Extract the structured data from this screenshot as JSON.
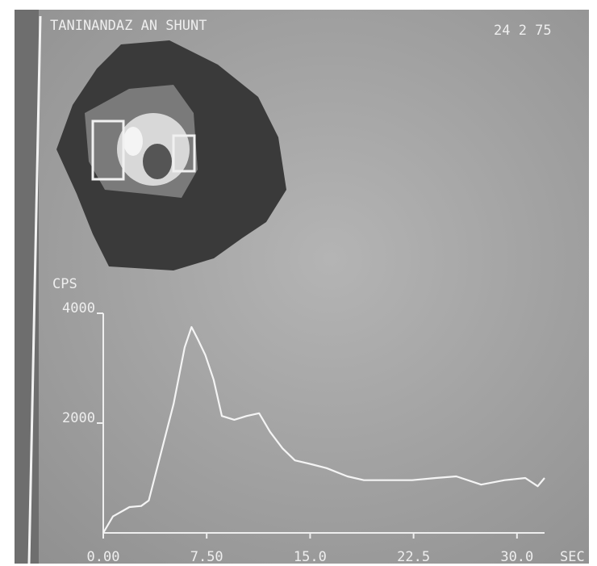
{
  "chart_data": {
    "type": "line",
    "title": "TANINANDAZ AN SHUNT",
    "annotation": "24 2 75",
    "y_label": "CPS",
    "x_label": "SEC",
    "x": [
      0,
      0.7,
      1.9,
      2.75,
      3.3,
      4.2,
      5.1,
      5.9,
      6.4,
      6.85,
      7.4,
      8.0,
      8.6,
      9.5,
      10.4,
      11.3,
      12.1,
      13.0,
      13.9,
      15.1,
      16.2,
      17.7,
      18.9,
      20.6,
      22.4,
      24.1,
      25.6,
      27.4,
      29.1,
      30.6,
      31.5,
      32
    ],
    "values": [
      0,
      300,
      470,
      490,
      590,
      1470,
      2350,
      3380,
      3750,
      3530,
      3240,
      2790,
      2130,
      2060,
      2130,
      2180,
      1840,
      1540,
      1320,
      1250,
      1180,
      1030,
      960,
      960,
      960,
      1000,
      1030,
      880,
      960,
      1000,
      850,
      1000
    ],
    "color": "#f4f4f4",
    "xlim": [
      0,
      32
    ],
    "ylim": [
      0,
      4000
    ],
    "xticks": [
      {
        "value": 0,
        "label": "0.00"
      },
      {
        "value": 7.5,
        "label": "7.50"
      },
      {
        "value": 15,
        "label": "15.0"
      },
      22.5,
      {
        "value": 30,
        "label": "30.0"
      }
    ],
    "yticks": [
      2000,
      4000
    ]
  }
}
